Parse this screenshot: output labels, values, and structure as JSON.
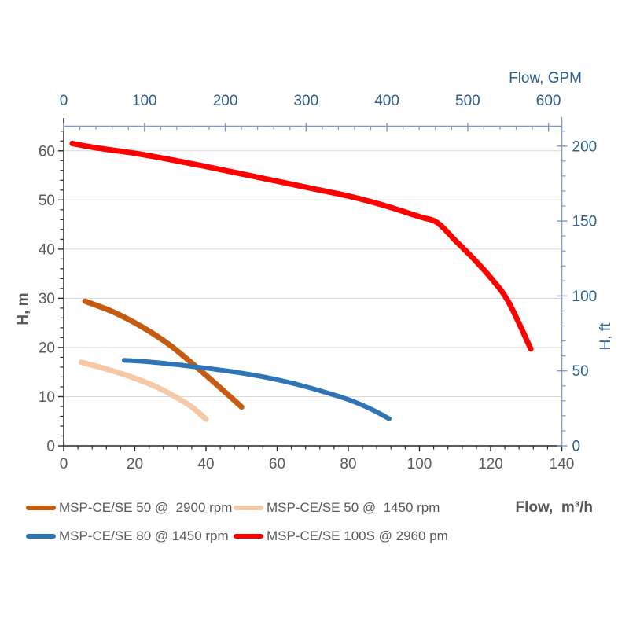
{
  "chart_data": {
    "type": "line",
    "title": "",
    "description": "Pump head-flow performance curves, dual axes (metric and US units)",
    "axes": {
      "top": {
        "label": "Flow, GPM",
        "min": 0,
        "major_ticks": [
          0,
          100,
          200,
          300,
          400,
          500,
          600
        ],
        "minor_step": 20,
        "gpm_per_m3h": 4.40287,
        "tick_label_color": "#2E5F8C"
      },
      "bottom": {
        "label": "Flow,  m³/h",
        "min": 0,
        "max": 140,
        "major_ticks": [
          0,
          20,
          40,
          60,
          80,
          100,
          120,
          140
        ],
        "minor_step": 4,
        "tick_label_color": "#595959"
      },
      "left": {
        "label": "H, m",
        "min": 0,
        "max": 65,
        "major_ticks": [
          0,
          10,
          20,
          30,
          40,
          50,
          60
        ],
        "minor_step": 2,
        "tick_label_color": "#595959"
      },
      "right": {
        "label": "H, ft",
        "min": 0,
        "major_ticks": [
          0,
          50,
          100,
          150,
          200
        ],
        "minor_step": 10,
        "m_per_ft": 0.3048,
        "tick_label_color": "#2E5F8C"
      }
    },
    "grid": {
      "horizontal_major": true,
      "vertical": false,
      "color": "#D9D9D9"
    },
    "legend": {
      "position": "bottom-left",
      "columns": 2,
      "text_color": "#595959"
    },
    "colors": {
      "axis_dark": "#262626",
      "axis_blue": "#7E9ABF"
    },
    "series": [
      {
        "name": "MSP-CE/SE 50 @  2900 rpm",
        "color": "#C55A11",
        "points": [
          [
            6,
            29.4
          ],
          [
            14,
            27.2
          ],
          [
            22,
            24.2
          ],
          [
            30,
            20.4
          ],
          [
            38,
            15.6
          ],
          [
            44,
            11.8
          ],
          [
            50,
            7.9
          ]
        ]
      },
      {
        "name": "MSP-CE/SE 50 @  1450 rpm",
        "color": "#F5C8A6",
        "points": [
          [
            5,
            17.0
          ],
          [
            12,
            15.6
          ],
          [
            19,
            14.0
          ],
          [
            26,
            12.0
          ],
          [
            32,
            9.7
          ],
          [
            36,
            7.9
          ],
          [
            40,
            5.4
          ]
        ]
      },
      {
        "name": "MSP-CE/SE 80 @ 1450 rpm",
        "color": "#2E75B6",
        "points": [
          [
            17,
            17.4
          ],
          [
            25,
            17.0
          ],
          [
            33,
            16.4
          ],
          [
            41,
            15.7
          ],
          [
            49,
            14.9
          ],
          [
            57,
            13.9
          ],
          [
            65,
            12.6
          ],
          [
            73,
            11.0
          ],
          [
            80,
            9.4
          ],
          [
            86,
            7.6
          ],
          [
            91.5,
            5.5
          ]
        ]
      },
      {
        "name": "MSP-CE/SE 100S @ 2960 pm",
        "color": "#FE0000",
        "points": [
          [
            2.4,
            61.5
          ],
          [
            10,
            60.5
          ],
          [
            20,
            59.5
          ],
          [
            30,
            58.2
          ],
          [
            40,
            56.8
          ],
          [
            50,
            55.3
          ],
          [
            60,
            53.8
          ],
          [
            70,
            52.3
          ],
          [
            80,
            50.8
          ],
          [
            90,
            48.9
          ],
          [
            100,
            46.6
          ],
          [
            105,
            45.4
          ],
          [
            110,
            41.8
          ],
          [
            115,
            38.2
          ],
          [
            120,
            34.2
          ],
          [
            125,
            29.3
          ],
          [
            131.3,
            19.7
          ]
        ]
      }
    ]
  }
}
